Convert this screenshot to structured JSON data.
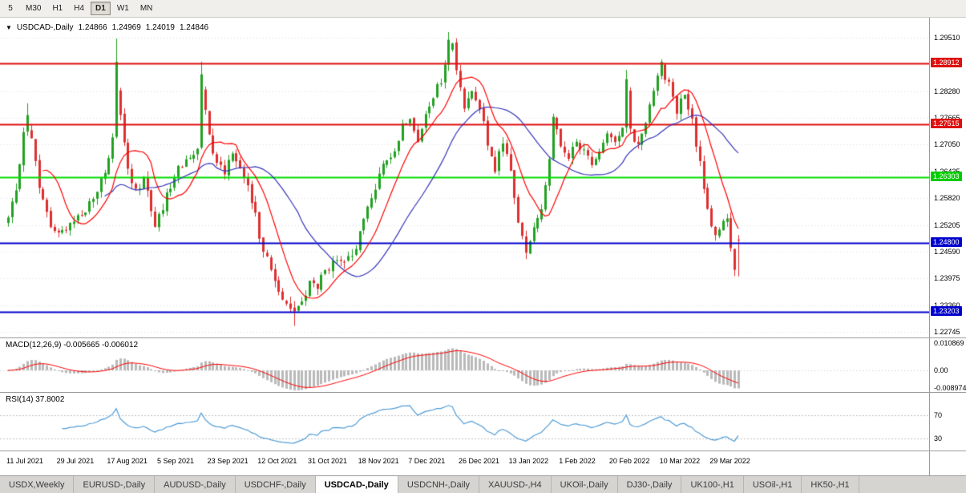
{
  "toolbar": {
    "timeframes": [
      {
        "label": "5",
        "active": false
      },
      {
        "label": "M30",
        "active": false
      },
      {
        "label": "H1",
        "active": false
      },
      {
        "label": "H4",
        "active": false
      },
      {
        "label": "D1",
        "active": true
      },
      {
        "label": "W1",
        "active": false
      },
      {
        "label": "MN",
        "active": false
      }
    ]
  },
  "header": {
    "direction_icon": "▼",
    "symbol": "USDCAD-,Daily",
    "open": "1.24866",
    "high": "1.24969",
    "low": "1.24019",
    "close": "1.24846"
  },
  "price_axis": {
    "ticks": [
      {
        "label": "1.29510",
        "price": 1.2951
      },
      {
        "label": "1.28280",
        "price": 1.2828
      },
      {
        "label": "1.27665",
        "price": 1.27665
      },
      {
        "label": "1.27050",
        "price": 1.2705
      },
      {
        "label": "1.26435",
        "price": 1.26435
      },
      {
        "label": "1.25820",
        "price": 1.2582
      },
      {
        "label": "1.25205",
        "price": 1.25205
      },
      {
        "label": "1.24590",
        "price": 1.2459
      },
      {
        "label": "1.23975",
        "price": 1.23975
      },
      {
        "label": "1.23360",
        "price": 1.2336
      },
      {
        "label": "1.22745",
        "price": 1.22745
      }
    ],
    "boxed": [
      {
        "label": "1.28912",
        "price": 1.28912,
        "color": "#dd1111"
      },
      {
        "label": "1.27515",
        "price": 1.27515,
        "color": "#dd1111"
      },
      {
        "label": "1.26303",
        "price": 1.26303,
        "color": "#00cc00"
      },
      {
        "label": "1.24800",
        "price": 1.248,
        "color": "#0000cc"
      },
      {
        "label": "1.23203",
        "price": 1.23203,
        "color": "#0000cc"
      }
    ]
  },
  "macd_panel": {
    "label": "MACD(12,26,9) -0.005665 -0.006012",
    "axis": [
      {
        "label": "0.010869",
        "value": 0.010869
      },
      {
        "label": "0.00",
        "value": 0
      },
      {
        "label": "-0.008974",
        "value": -0.008974
      }
    ]
  },
  "rsi_panel": {
    "label": "RSI(14) 37.8002",
    "axis": [
      {
        "label": "70",
        "value": 70
      },
      {
        "label": "30",
        "value": 30
      }
    ]
  },
  "date_axis": [
    {
      "label": "11 Jul 2021",
      "i": 0
    },
    {
      "label": "29 Jul 2021",
      "i": 13
    },
    {
      "label": "17 Aug 2021",
      "i": 26
    },
    {
      "label": "5 Sep 2021",
      "i": 39
    },
    {
      "label": "23 Sep 2021",
      "i": 52
    },
    {
      "label": "12 Oct 2021",
      "i": 65
    },
    {
      "label": "31 Oct 2021",
      "i": 78
    },
    {
      "label": "18 Nov 2021",
      "i": 91
    },
    {
      "label": "7 Dec 2021",
      "i": 104
    },
    {
      "label": "26 Dec 2021",
      "i": 117
    },
    {
      "label": "13 Jan 2022",
      "i": 130
    },
    {
      "label": "1 Feb 2022",
      "i": 143
    },
    {
      "label": "20 Feb 2022",
      "i": 156
    },
    {
      "label": "10 Mar 2022",
      "i": 169
    },
    {
      "label": "29 Mar 2022",
      "i": 182
    }
  ],
  "tabs": {
    "items": [
      {
        "label": "USDX,Weekly",
        "active": false
      },
      {
        "label": "EURUSD-,Daily",
        "active": false
      },
      {
        "label": "AUDUSD-,Daily",
        "active": false
      },
      {
        "label": "USDCHF-,Daily",
        "active": false
      },
      {
        "label": "USDCAD-,Daily",
        "active": true
      },
      {
        "label": "USDCNH-,Daily",
        "active": false
      },
      {
        "label": "XAUUSD-,H4",
        "active": false
      },
      {
        "label": "UKOil-,Daily",
        "active": false
      },
      {
        "label": "DJ30-,Daily",
        "active": false
      },
      {
        "label": "UK100-,H1",
        "active": false
      },
      {
        "label": "USOil-,H1",
        "active": false
      },
      {
        "label": "HK50-,H1",
        "active": false
      }
    ]
  },
  "chart_data": {
    "type": "candlestick",
    "symbol": "USDCAD-",
    "timeframe": "Daily",
    "title": "USDCAD-,Daily",
    "last_candle": {
      "open": 1.24866,
      "high": 1.24969,
      "low": 1.24019,
      "close": 1.24846
    },
    "axis_range": {
      "top_price": 1.2951,
      "bottom_price": 1.22745
    },
    "levels": [
      {
        "price": 1.28912,
        "color": "#dd1111",
        "width": 2,
        "role": "resistance"
      },
      {
        "price": 1.27515,
        "color": "#dd1111",
        "width": 2,
        "role": "resistance"
      },
      {
        "price": 1.26303,
        "color": "#00dd00",
        "width": 2,
        "role": "pivot"
      },
      {
        "price": 1.248,
        "color": "#0000cc",
        "width": 2,
        "role": "support"
      },
      {
        "price": 1.23203,
        "color": "#0000cc",
        "width": 2,
        "role": "support"
      }
    ],
    "candle_count": 190,
    "price_path_anchors": [
      [
        0,
        1.2535
      ],
      [
        2,
        1.259
      ],
      [
        4,
        1.2745
      ],
      [
        6,
        1.272
      ],
      [
        8,
        1.26
      ],
      [
        11,
        1.252
      ],
      [
        13,
        1.2495
      ],
      [
        16,
        1.253
      ],
      [
        19,
        1.2545
      ],
      [
        22,
        1.258
      ],
      [
        25,
        1.2645
      ],
      [
        27,
        1.271
      ],
      [
        28,
        1.282
      ],
      [
        29,
        1.278
      ],
      [
        31,
        1.264
      ],
      [
        33,
        1.2595
      ],
      [
        35,
        1.2635
      ],
      [
        38,
        1.252
      ],
      [
        40,
        1.2555
      ],
      [
        43,
        1.264
      ],
      [
        46,
        1.2665
      ],
      [
        49,
        1.27
      ],
      [
        50,
        1.284
      ],
      [
        51,
        1.2795
      ],
      [
        53,
        1.2685
      ],
      [
        56,
        1.2645
      ],
      [
        58,
        1.2695
      ],
      [
        60,
        1.265
      ],
      [
        63,
        1.2575
      ],
      [
        65,
        1.25
      ],
      [
        67,
        1.244
      ],
      [
        70,
        1.237
      ],
      [
        72,
        1.2345
      ],
      [
        74,
        1.232
      ],
      [
        76,
        1.2345
      ],
      [
        78,
        1.2385
      ],
      [
        80,
        1.238
      ],
      [
        83,
        1.2425
      ],
      [
        86,
        1.243
      ],
      [
        89,
        1.2445
      ],
      [
        91,
        1.25
      ],
      [
        93,
        1.256
      ],
      [
        95,
        1.261
      ],
      [
        97,
        1.265
      ],
      [
        100,
        1.27
      ],
      [
        102,
        1.2745
      ],
      [
        104,
        1.2775
      ],
      [
        106,
        1.272
      ],
      [
        108,
        1.2765
      ],
      [
        110,
        1.2815
      ],
      [
        112,
        1.285
      ],
      [
        114,
        1.292
      ],
      [
        115,
        1.294
      ],
      [
        116,
        1.287
      ],
      [
        118,
        1.279
      ],
      [
        120,
        1.284
      ],
      [
        122,
        1.2795
      ],
      [
        124,
        1.27
      ],
      [
        126,
        1.2645
      ],
      [
        128,
        1.2715
      ],
      [
        130,
        1.265
      ],
      [
        132,
        1.252
      ],
      [
        134,
        1.2465
      ],
      [
        136,
        1.251
      ],
      [
        138,
        1.256
      ],
      [
        140,
        1.268
      ],
      [
        141,
        1.276
      ],
      [
        143,
        1.27
      ],
      [
        145,
        1.2665
      ],
      [
        147,
        1.2715
      ],
      [
        149,
        1.269
      ],
      [
        151,
        1.2655
      ],
      [
        153,
        1.27
      ],
      [
        155,
        1.2735
      ],
      [
        157,
        1.27
      ],
      [
        159,
        1.2755
      ],
      [
        160,
        1.283
      ],
      [
        161,
        1.2745
      ],
      [
        163,
        1.27
      ],
      [
        165,
        1.276
      ],
      [
        167,
        1.284
      ],
      [
        169,
        1.2885
      ],
      [
        171,
        1.284
      ],
      [
        173,
        1.2785
      ],
      [
        175,
        1.282
      ],
      [
        177,
        1.2755
      ],
      [
        179,
        1.266
      ],
      [
        181,
        1.256
      ],
      [
        183,
        1.249
      ],
      [
        185,
        1.252
      ],
      [
        186,
        1.2545
      ],
      [
        187,
        1.247
      ],
      [
        188,
        1.241
      ],
      [
        189,
        1.24846
      ]
    ],
    "spikes": [
      {
        "i": 5,
        "high": 1.28
      },
      {
        "i": 28,
        "high": 1.2949
      },
      {
        "i": 50,
        "high": 1.2896
      },
      {
        "i": 74,
        "low": 1.2288
      },
      {
        "i": 114,
        "high": 1.2964
      },
      {
        "i": 160,
        "high": 1.2877
      },
      {
        "i": 169,
        "high": 1.2901
      },
      {
        "i": 188,
        "low": 1.2403
      }
    ],
    "colors": {
      "up": "#21a121",
      "down": "#dd2f2f",
      "ma_fast": "#ff0000",
      "ma_slow": "#3333bb",
      "macd_hist": "#b9b9b9",
      "macd_signal": "#ff0000",
      "rsi": "#4f9bd5",
      "grid": "#dedede"
    },
    "indicators": {
      "ma_fast_period": 10,
      "ma_slow_period": 26,
      "macd": {
        "fast": 12,
        "slow": 26,
        "signal": 9,
        "main_value": -0.005665,
        "signal_value": -0.006012
      },
      "rsi": {
        "period": 14,
        "value": 37.8002,
        "levels": [
          30,
          70
        ]
      }
    }
  }
}
